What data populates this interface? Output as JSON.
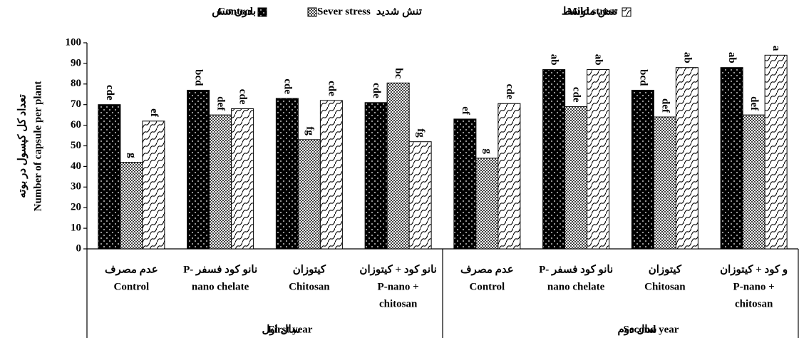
{
  "chart_data": {
    "type": "bar",
    "y_title": [
      "تعداد کل کپسول در بوته",
      "Number of capsule per plant"
    ],
    "categories": [
      [
        "عدم مصرف",
        "Control"
      ],
      [
        "نانو کود فسفر -P",
        "nano chelate"
      ],
      [
        "کیتوزان",
        "Chitosan"
      ],
      [
        "نانو کود + کیتوزان",
        "P-nano +",
        "chitosan"
      ],
      [
        "عدم مصرف",
        "Control"
      ],
      [
        "نانو کود فسفر -P",
        "nano chelate"
      ],
      [
        "کیتوزان",
        "Chitosan"
      ],
      [
        "و کود + کیتوزان",
        "P-nano +",
        "chitosan"
      ]
    ],
    "groups": [
      {
        "name": "First year",
        "name_fa": "سال اول"
      },
      {
        "name": "Second year",
        "name_fa": "سال دوم"
      }
    ],
    "series": [
      {
        "name": "Control",
        "name_fa": "بدون تنش",
        "color": "#000000",
        "pattern": "dots",
        "values": [
          70,
          77,
          73,
          71,
          63,
          87,
          77,
          88
        ],
        "labels": [
          "cde",
          "bcd",
          "cde",
          "cde",
          "ef",
          "ab",
          "bcd",
          "ab"
        ]
      },
      {
        "name": "Sever stress",
        "name_fa": "تنش شدید",
        "color": "#808080",
        "pattern": "checker",
        "values": [
          42,
          65,
          53,
          80.5,
          44,
          69,
          64,
          65
        ],
        "labels": [
          "g",
          "def",
          "fg",
          "bc",
          "g",
          "cde",
          "def",
          "def"
        ]
      },
      {
        "name": "Mild stress",
        "name_fa": "تنش متوسط",
        "color": "#ffffff",
        "pattern": "waves",
        "values": [
          62,
          68,
          72,
          52,
          70.5,
          87,
          88,
          94
        ],
        "labels": [
          "ef",
          "cde",
          "cde",
          "fg",
          "cde",
          "ab",
          "ab",
          "a"
        ]
      }
    ],
    "ylim": [
      0,
      100
    ],
    "yticks": [
      0,
      10,
      20,
      30,
      40,
      50,
      60,
      70,
      80,
      90,
      100
    ],
    "grid": false
  }
}
